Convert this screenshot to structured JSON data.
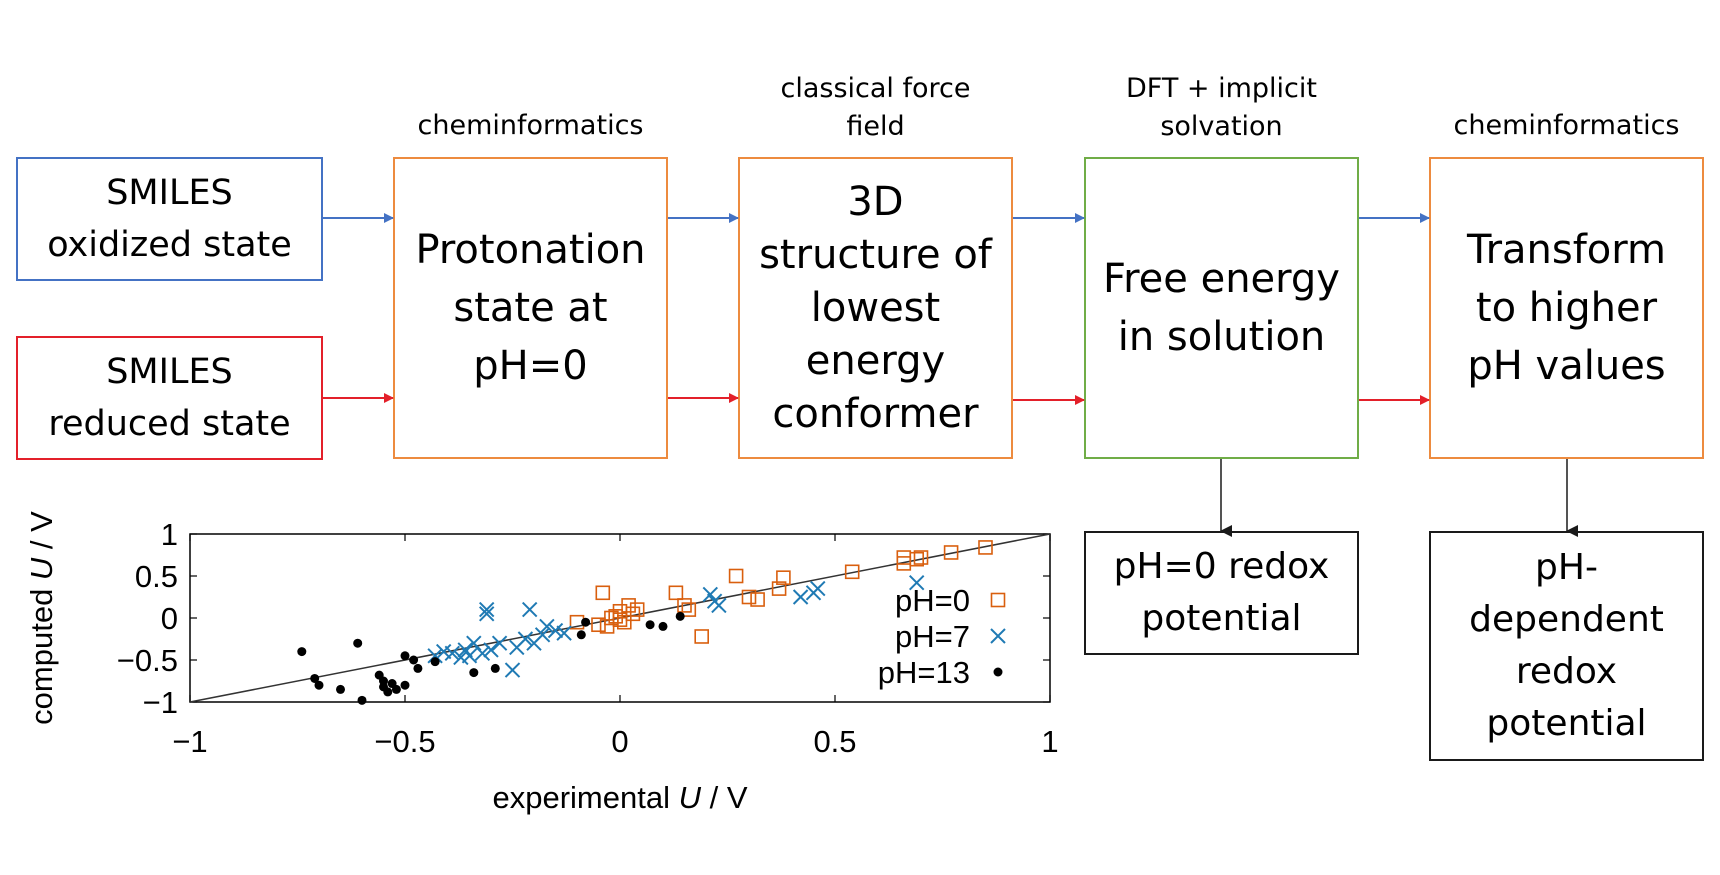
{
  "inputs": {
    "oxidized": "SMILES\noxidized state",
    "reduced": "SMILES\nreduced state"
  },
  "steps": [
    {
      "caption": "cheminformatics",
      "text": "Protonation\nstate at\npH=0"
    },
    {
      "caption": "classical force\nfield",
      "text": "3D\nstructure of\nlowest\nenergy\nconformer"
    },
    {
      "caption": "DFT + implicit\nsolvation",
      "text": "Free energy\nin solution"
    },
    {
      "caption": "cheminformatics",
      "text": "Transform\nto higher\npH values"
    }
  ],
  "outputs": {
    "ph0": "pH=0 redox\npotential",
    "phdep": "pH-\ndependent\nredox\npotential"
  },
  "colors": {
    "oxidized": "#4472c4",
    "reduced": "#e3202a",
    "cheminformatics": "#ed8b3f",
    "dft": "#70ad47",
    "ph0": "#d95f0e",
    "ph7": "#1f7ab4",
    "ph13": "#000000"
  },
  "chart_data": {
    "type": "scatter",
    "xlabel_prefix": "experimental ",
    "xlabel_var": "U",
    "xlabel_suffix": " / V",
    "ylabel_prefix": "computed ",
    "ylabel_var": "U",
    "ylabel_suffix": " / V",
    "xlim": [
      -1,
      1
    ],
    "ylim": [
      -1,
      1
    ],
    "x_ticks": [
      -1,
      -0.5,
      0,
      0.5,
      1
    ],
    "x_tick_labels": [
      "−1",
      "−0.5",
      "0",
      "0.5",
      "1"
    ],
    "y_ticks": [
      -1,
      -0.5,
      0,
      0.5,
      1
    ],
    "y_tick_labels": [
      "−1",
      "−0.5",
      "0",
      "0.5",
      "1"
    ],
    "diagonal": true,
    "legend_position": "right",
    "series": [
      {
        "name": "pH=0",
        "marker": "square",
        "color": "#d95f0e",
        "points": [
          [
            -0.1,
            -0.05
          ],
          [
            -0.05,
            -0.08
          ],
          [
            -0.04,
            0.3
          ],
          [
            -0.03,
            -0.1
          ],
          [
            -0.02,
            0.0
          ],
          [
            -0.01,
            0.02
          ],
          [
            0.0,
            -0.02
          ],
          [
            0.0,
            0.08
          ],
          [
            0.01,
            -0.05
          ],
          [
            0.02,
            0.15
          ],
          [
            0.03,
            0.05
          ],
          [
            0.04,
            0.1
          ],
          [
            0.13,
            0.3
          ],
          [
            0.15,
            0.15
          ],
          [
            0.16,
            0.1
          ],
          [
            0.19,
            -0.22
          ],
          [
            0.27,
            0.5
          ],
          [
            0.3,
            0.25
          ],
          [
            0.32,
            0.22
          ],
          [
            0.37,
            0.35
          ],
          [
            0.38,
            0.48
          ],
          [
            0.54,
            0.55
          ],
          [
            0.66,
            0.65
          ],
          [
            0.66,
            0.72
          ],
          [
            0.69,
            0.7
          ],
          [
            0.7,
            0.72
          ],
          [
            0.77,
            0.78
          ],
          [
            0.85,
            0.84
          ]
        ]
      },
      {
        "name": "pH=7",
        "marker": "x",
        "color": "#1f7ab4",
        "points": [
          [
            -0.43,
            -0.45
          ],
          [
            -0.41,
            -0.4
          ],
          [
            -0.39,
            -0.42
          ],
          [
            -0.37,
            -0.47
          ],
          [
            -0.36,
            -0.38
          ],
          [
            -0.35,
            -0.45
          ],
          [
            -0.34,
            -0.3
          ],
          [
            -0.32,
            -0.42
          ],
          [
            -0.31,
            0.1
          ],
          [
            -0.31,
            0.05
          ],
          [
            -0.3,
            -0.38
          ],
          [
            -0.28,
            -0.3
          ],
          [
            -0.25,
            -0.62
          ],
          [
            -0.24,
            -0.35
          ],
          [
            -0.22,
            -0.25
          ],
          [
            -0.21,
            0.1
          ],
          [
            -0.2,
            -0.3
          ],
          [
            -0.18,
            -0.2
          ],
          [
            -0.17,
            -0.1
          ],
          [
            -0.15,
            -0.15
          ],
          [
            -0.13,
            -0.18
          ],
          [
            0.21,
            0.28
          ],
          [
            0.22,
            0.2
          ],
          [
            0.23,
            0.15
          ],
          [
            0.42,
            0.25
          ],
          [
            0.45,
            0.3
          ],
          [
            0.46,
            0.35
          ],
          [
            0.69,
            0.42
          ]
        ]
      },
      {
        "name": "pH=13",
        "marker": "dot",
        "color": "#000000",
        "points": [
          [
            -0.74,
            -0.4
          ],
          [
            -0.71,
            -0.72
          ],
          [
            -0.7,
            -0.8
          ],
          [
            -0.65,
            -0.85
          ],
          [
            -0.61,
            -0.3
          ],
          [
            -0.6,
            -0.98
          ],
          [
            -0.56,
            -0.68
          ],
          [
            -0.55,
            -0.75
          ],
          [
            -0.55,
            -0.82
          ],
          [
            -0.54,
            -0.88
          ],
          [
            -0.53,
            -0.78
          ],
          [
            -0.52,
            -0.85
          ],
          [
            -0.5,
            -0.45
          ],
          [
            -0.5,
            -0.8
          ],
          [
            -0.48,
            -0.5
          ],
          [
            -0.47,
            -0.6
          ],
          [
            -0.43,
            -0.52
          ],
          [
            -0.34,
            -0.65
          ],
          [
            -0.29,
            -0.6
          ],
          [
            -0.09,
            -0.2
          ],
          [
            -0.08,
            -0.05
          ],
          [
            0.07,
            -0.08
          ],
          [
            0.1,
            -0.1
          ],
          [
            0.14,
            0.02
          ]
        ]
      }
    ]
  }
}
